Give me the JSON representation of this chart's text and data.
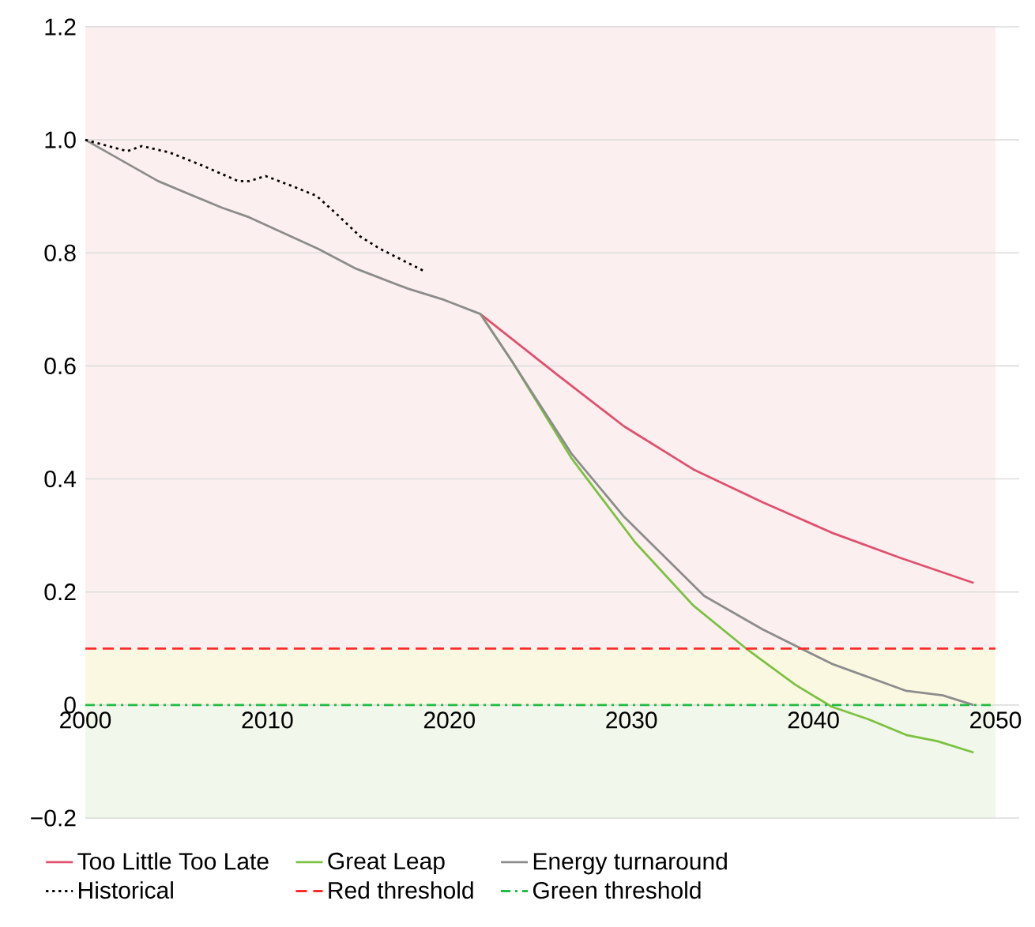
{
  "chart_data": {
    "type": "line",
    "xlim": [
      2000,
      2050
    ],
    "xticks": [
      2000,
      2010,
      2020,
      2030,
      2040,
      2050
    ],
    "ylim": [
      -0.2,
      1.2
    ],
    "yticks": [
      {
        "value": -0.2,
        "label": "−0.2"
      },
      {
        "value": 0,
        "label": "0"
      },
      {
        "value": 0.2,
        "label": "0.2"
      },
      {
        "value": 0.4,
        "label": "0.4"
      },
      {
        "value": 0.6,
        "label": "0.6"
      },
      {
        "value": 0.8,
        "label": "0.8"
      },
      {
        "value": 1.0,
        "label": "1.0"
      },
      {
        "value": 1.2,
        "label": "1.2"
      }
    ],
    "grid": "y",
    "legend": "bottom",
    "marker": "none",
    "series": [
      {
        "name": "Too Little Too Late",
        "color": "#e0506e",
        "line_style": "solid",
        "x": [
          2021.7,
          2025.9,
          2029.6,
          2033.4,
          2037.2,
          2041,
          2044.8,
          2048.8
        ],
        "values": [
          0.692,
          0.585,
          0.493,
          0.417,
          0.359,
          0.305,
          0.26,
          0.216
        ]
      },
      {
        "name": "Great Leap",
        "color": "#7cc142",
        "line_style": "solid",
        "x": [
          2021.7,
          2023.5,
          2026.7,
          2030.2,
          2033.4,
          2036.3,
          2039,
          2041,
          2043,
          2045.1,
          2046.8,
          2048.8
        ],
        "values": [
          0.692,
          0.605,
          0.437,
          0.288,
          0.176,
          0.1,
          0.036,
          -0.003,
          -0.025,
          -0.053,
          -0.064,
          -0.084
        ]
      },
      {
        "name": "Energy turnaround",
        "color": "#8c8c8c",
        "line_style": "solid",
        "x": [
          2000,
          2004,
          2007.5,
          2009,
          2012.8,
          2014.8,
          2017.7,
          2019.7,
          2021.7,
          2023.5,
          2026.7,
          2029.6,
          2034,
          2037.2,
          2041,
          2045.1,
          2047.1,
          2048.8
        ],
        "values": [
          1.0,
          0.927,
          0.88,
          0.863,
          0.807,
          0.773,
          0.737,
          0.717,
          0.692,
          0.605,
          0.445,
          0.333,
          0.193,
          0.134,
          0.073,
          0.025,
          0.017,
          0.0
        ]
      },
      {
        "name": "Historical",
        "color": "#000000",
        "line_style": "dotted",
        "x": [
          2000,
          2002.3,
          2003.1,
          2004.6,
          2006.4,
          2008.4,
          2009,
          2009.9,
          2011.3,
          2012.7,
          2013.9,
          2015.1,
          2016.2,
          2018.6
        ],
        "values": [
          1.0,
          0.98,
          0.989,
          0.978,
          0.955,
          0.927,
          0.927,
          0.936,
          0.919,
          0.901,
          0.866,
          0.829,
          0.807,
          0.768
        ]
      }
    ],
    "ref_lines": [
      {
        "axis": "y",
        "value": 0.1,
        "label": "Red threshold",
        "color": "#ff2a2a",
        "line_style": "dashed"
      },
      {
        "axis": "y",
        "value": 0,
        "label": "Green threshold",
        "color": "#22bb44",
        "line_style": "dashdot"
      }
    ],
    "bands": [
      {
        "axis": "y",
        "from": 0.1,
        "to": 1.2,
        "color": "#fcefef"
      },
      {
        "axis": "y",
        "from": 0,
        "to": 0.1,
        "color": "#fbf8e2"
      },
      {
        "axis": "y",
        "from": -0.2,
        "to": 0,
        "color": "#f1f7ea"
      }
    ]
  }
}
